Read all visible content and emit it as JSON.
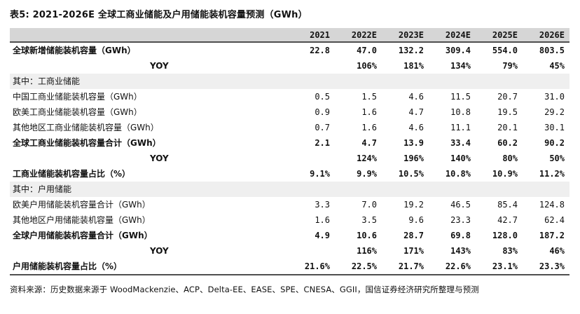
{
  "title": "表5: 2021-2026E 全球工商业储能及户用储能装机容量预测（GWh）",
  "source": "资料来源：历史数据来源于 WoodMackenzie、ACP、Delta-EE、EASE、SPE、CNESA、GGII，国信证券经济研究所整理与预测",
  "colors": {
    "header_bg": "#d6d6d6",
    "section_bg": "#efefef",
    "strong_line": "#4f4f4f",
    "text": "#111111"
  },
  "chart_data": {
    "type": "table",
    "title": "2021-2026E 全球工商业储能及户用储能装机容量预测（GWh）",
    "columns": [
      "2021",
      "2022E",
      "2023E",
      "2024E",
      "2025E",
      "2026E"
    ],
    "rows": [
      {
        "label": "全球新增储能装机容量（GWh）",
        "bold": true,
        "values": [
          "22.8",
          "47.0",
          "132.2",
          "309.4",
          "554.0",
          "803.5"
        ]
      },
      {
        "label": "YOY",
        "bold": true,
        "yoy": true,
        "values": [
          "",
          "106%",
          "181%",
          "134%",
          "79%",
          "45%"
        ]
      },
      {
        "label": "其中：工商业储能",
        "section": true
      },
      {
        "label": "中国工商业储能装机容量（GWh）",
        "values": [
          "0.5",
          "1.5",
          "4.6",
          "11.5",
          "20.7",
          "31.0"
        ]
      },
      {
        "label": "欧美工商业储能装机容量（GWh）",
        "values": [
          "0.9",
          "1.6",
          "4.7",
          "10.8",
          "19.5",
          "29.2"
        ]
      },
      {
        "label": "其他地区工商业储能装机容量（GWh）",
        "values": [
          "0.7",
          "1.6",
          "4.6",
          "11.1",
          "20.1",
          "30.1"
        ]
      },
      {
        "label": "全球工商业储能装机容量合计（GWh）",
        "bold": true,
        "values": [
          "2.1",
          "4.7",
          "13.9",
          "33.4",
          "60.2",
          "90.2"
        ]
      },
      {
        "label": "YOY",
        "bold": true,
        "yoy": true,
        "values": [
          "",
          "124%",
          "196%",
          "140%",
          "80%",
          "50%"
        ]
      },
      {
        "label": "工商业储能装机容量占比（%）",
        "bold": true,
        "values": [
          "9.1%",
          "9.9%",
          "10.5%",
          "10.8%",
          "10.9%",
          "11.2%"
        ]
      },
      {
        "label": "其中：户用储能",
        "section": true
      },
      {
        "label": "欧美户用储能装机容量合计（GWh）",
        "values": [
          "3.3",
          "7.0",
          "19.2",
          "46.5",
          "85.4",
          "124.8"
        ]
      },
      {
        "label": "其他地区户用储能装机容量（GWh）",
        "values": [
          "1.6",
          "3.5",
          "9.6",
          "23.3",
          "42.7",
          "62.4"
        ]
      },
      {
        "label": "全球户用储能装机容量合计（GWh）",
        "bold": true,
        "values": [
          "4.9",
          "10.6",
          "28.7",
          "69.8",
          "128.0",
          "187.2"
        ]
      },
      {
        "label": "YOY",
        "bold": true,
        "yoy": true,
        "values": [
          "",
          "116%",
          "171%",
          "143%",
          "83%",
          "46%"
        ]
      },
      {
        "label": "户用储能装机容量占比（%）",
        "bold": true,
        "values": [
          "21.6%",
          "22.5%",
          "21.7%",
          "22.6%",
          "23.1%",
          "23.3%"
        ]
      }
    ]
  }
}
